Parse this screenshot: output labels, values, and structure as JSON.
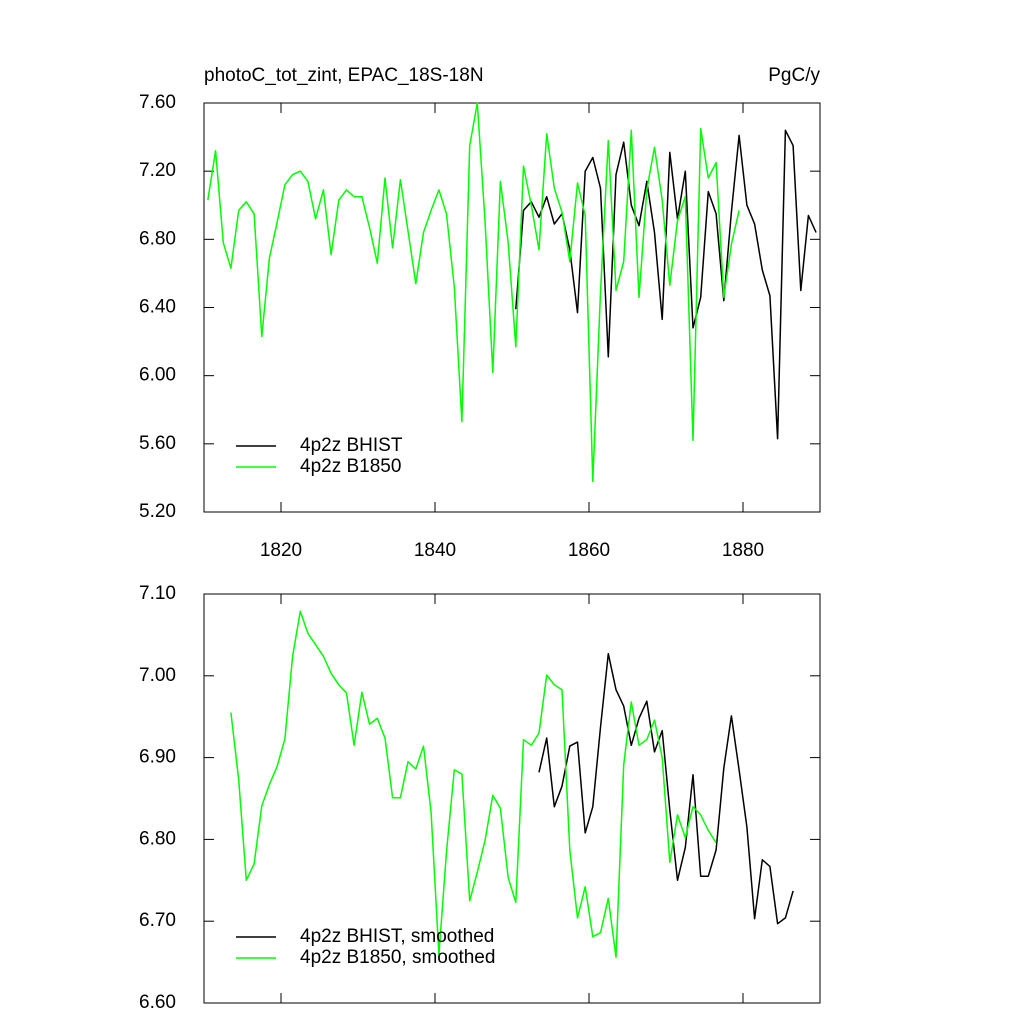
{
  "chart_data": [
    {
      "type": "line",
      "title": "photoC_tot_zint, EPAC_18S-18N",
      "units": "PgC/y",
      "x": [
        1810.5,
        1811.5,
        1812.5,
        1813.5,
        1814.5,
        1815.5,
        1816.5,
        1817.5,
        1818.5,
        1819.5,
        1820.5,
        1821.5,
        1822.5,
        1823.5,
        1824.5,
        1825.5,
        1826.5,
        1827.5,
        1828.5,
        1829.5,
        1830.5,
        1831.5,
        1832.5,
        1833.5,
        1834.5,
        1835.5,
        1836.5,
        1837.5,
        1838.5,
        1839.5,
        1840.5,
        1841.5,
        1842.5,
        1843.5,
        1844.5,
        1845.5,
        1846.5,
        1847.5,
        1848.5,
        1849.5,
        1850.5,
        1851.5,
        1852.5,
        1853.5,
        1854.5,
        1855.5,
        1856.5,
        1857.5,
        1858.5,
        1859.5,
        1860.5,
        1861.5,
        1862.5,
        1863.5,
        1864.5,
        1865.5,
        1866.5,
        1867.5,
        1868.5,
        1869.5,
        1870.5,
        1871.5,
        1872.5,
        1873.5,
        1874.5,
        1875.5,
        1876.5,
        1877.5,
        1878.5,
        1879.5,
        1880.5,
        1881.5,
        1882.5,
        1883.5,
        1884.5,
        1885.5,
        1886.5,
        1887.5,
        1888.5,
        1889.5
      ],
      "series": [
        {
          "name": "4p2z BHIST",
          "color": "#000000",
          "values": [
            null,
            null,
            null,
            null,
            null,
            null,
            null,
            null,
            null,
            null,
            null,
            null,
            null,
            null,
            null,
            null,
            null,
            null,
            null,
            null,
            null,
            null,
            null,
            null,
            null,
            null,
            null,
            null,
            null,
            null,
            null,
            null,
            null,
            null,
            null,
            null,
            null,
            null,
            null,
            null,
            6.39,
            6.97,
            7.02,
            6.93,
            7.05,
            6.89,
            6.95,
            6.74,
            6.37,
            7.2,
            7.28,
            7.1,
            6.11,
            7.18,
            7.37,
            7.0,
            6.88,
            7.14,
            6.84,
            6.33,
            7.31,
            6.92,
            7.2,
            6.28,
            6.46,
            7.08,
            6.95,
            6.44,
            6.96,
            7.41,
            7.0,
            6.89,
            6.62,
            6.47,
            5.63,
            7.44,
            7.35,
            6.5,
            6.94,
            6.84
          ]
        },
        {
          "name": "4p2z B1850",
          "color": "#00ff00",
          "values": [
            7.03,
            7.32,
            6.78,
            6.63,
            6.97,
            7.02,
            6.95,
            6.23,
            6.69,
            6.9,
            7.12,
            7.18,
            7.2,
            7.14,
            6.92,
            7.09,
            6.71,
            7.03,
            7.09,
            7.05,
            7.05,
            6.87,
            6.66,
            7.16,
            6.75,
            7.15,
            6.85,
            6.54,
            6.84,
            6.97,
            7.09,
            6.95,
            6.52,
            5.73,
            7.35,
            7.6,
            6.9,
            6.02,
            7.14,
            6.78,
            6.17,
            7.23,
            7.0,
            6.74,
            7.42,
            7.1,
            6.96,
            6.67,
            7.13,
            6.94,
            5.38,
            6.49,
            7.38,
            6.5,
            6.67,
            7.44,
            6.46,
            7.09,
            7.34,
            7.03,
            6.53,
            6.91,
            7.05,
            5.62,
            7.45,
            7.16,
            7.25,
            6.46,
            6.77,
            6.97,
            null,
            null,
            null,
            null,
            null,
            null,
            null,
            null,
            null,
            null
          ]
        }
      ],
      "xlim": [
        1810,
        1890
      ],
      "xticks": [
        1820,
        1840,
        1860,
        1880
      ],
      "show_xtick_labels": true,
      "ylim": [
        5.2,
        7.6
      ],
      "yticks": [
        {
          "value": 5.2,
          "label": "5.20"
        },
        {
          "value": 5.6,
          "label": "5.60"
        },
        {
          "value": 6.0,
          "label": "6.00"
        },
        {
          "value": 6.4,
          "label": "6.40"
        },
        {
          "value": 6.8,
          "label": "6.80"
        },
        {
          "value": 7.2,
          "label": "7.20"
        },
        {
          "value": 7.6,
          "label": "7.60"
        }
      ],
      "legend": "lower left"
    },
    {
      "type": "line",
      "x": [
        1810.5,
        1811.5,
        1812.5,
        1813.5,
        1814.5,
        1815.5,
        1816.5,
        1817.5,
        1818.5,
        1819.5,
        1820.5,
        1821.5,
        1822.5,
        1823.5,
        1824.5,
        1825.5,
        1826.5,
        1827.5,
        1828.5,
        1829.5,
        1830.5,
        1831.5,
        1832.5,
        1833.5,
        1834.5,
        1835.5,
        1836.5,
        1837.5,
        1838.5,
        1839.5,
        1840.5,
        1841.5,
        1842.5,
        1843.5,
        1844.5,
        1845.5,
        1846.5,
        1847.5,
        1848.5,
        1849.5,
        1850.5,
        1851.5,
        1852.5,
        1853.5,
        1854.5,
        1855.5,
        1856.5,
        1857.5,
        1858.5,
        1859.5,
        1860.5,
        1861.5,
        1862.5,
        1863.5,
        1864.5,
        1865.5,
        1866.5,
        1867.5,
        1868.5,
        1869.5,
        1870.5,
        1871.5,
        1872.5,
        1873.5,
        1874.5,
        1875.5,
        1876.5,
        1877.5,
        1878.5,
        1879.5,
        1880.5,
        1881.5,
        1882.5,
        1883.5,
        1884.5,
        1885.5,
        1886.5,
        1887.5,
        1888.5,
        1889.5
      ],
      "series": [
        {
          "name": "4p2z BHIST, smoothed",
          "color": "#000000",
          "values": [
            null,
            null,
            null,
            null,
            null,
            null,
            null,
            null,
            null,
            null,
            null,
            null,
            null,
            null,
            null,
            null,
            null,
            null,
            null,
            null,
            null,
            null,
            null,
            null,
            null,
            null,
            null,
            null,
            null,
            null,
            null,
            null,
            null,
            null,
            null,
            null,
            null,
            null,
            null,
            null,
            null,
            null,
            null,
            6.882,
            6.924,
            6.84,
            6.865,
            6.914,
            6.919,
            6.808,
            6.84,
            6.937,
            7.027,
            6.983,
            6.963,
            6.915,
            6.948,
            6.969,
            6.907,
            6.933,
            6.836,
            6.75,
            6.79,
            6.879,
            6.755,
            6.755,
            6.787,
            6.887,
            6.951,
            6.885,
            6.815,
            6.703,
            6.775,
            6.767,
            6.697,
            6.704,
            6.737,
            null,
            null,
            null
          ]
        },
        {
          "name": "4p2z B1850, smoothed",
          "color": "#00ff00",
          "values": [
            null,
            null,
            null,
            6.955,
            6.873,
            6.75,
            6.77,
            6.841,
            6.867,
            6.889,
            6.923,
            7.024,
            7.079,
            7.052,
            7.038,
            7.024,
            7.003,
            6.989,
            6.979,
            6.915,
            6.98,
            6.941,
            6.948,
            6.924,
            6.851,
            6.851,
            6.895,
            6.886,
            6.914,
            6.833,
            6.659,
            6.785,
            6.885,
            6.88,
            6.725,
            6.76,
            6.799,
            6.854,
            6.838,
            6.753,
            6.723,
            6.922,
            6.915,
            6.93,
            7.001,
            6.989,
            6.983,
            6.787,
            6.704,
            6.742,
            6.681,
            6.686,
            6.728,
            6.656,
            6.891,
            6.968,
            6.915,
            6.922,
            6.946,
            6.9,
            6.772,
            6.83,
            6.802,
            6.84,
            6.83,
            6.811,
            6.796,
            null,
            null,
            null,
            null,
            null,
            null,
            null,
            null,
            null,
            null,
            null,
            null,
            null
          ]
        }
      ],
      "xlim": [
        1810,
        1890
      ],
      "xticks": [
        1820,
        1840,
        1860,
        1880
      ],
      "show_xtick_labels": false,
      "ylim": [
        6.6,
        7.1
      ],
      "yticks": [
        {
          "value": 6.6,
          "label": "6.60"
        },
        {
          "value": 6.7,
          "label": "6.70"
        },
        {
          "value": 6.8,
          "label": "6.80"
        },
        {
          "value": 6.9,
          "label": "6.90"
        },
        {
          "value": 7.0,
          "label": "7.00"
        },
        {
          "value": 7.1,
          "label": "7.10"
        }
      ],
      "legend": "lower left"
    }
  ]
}
